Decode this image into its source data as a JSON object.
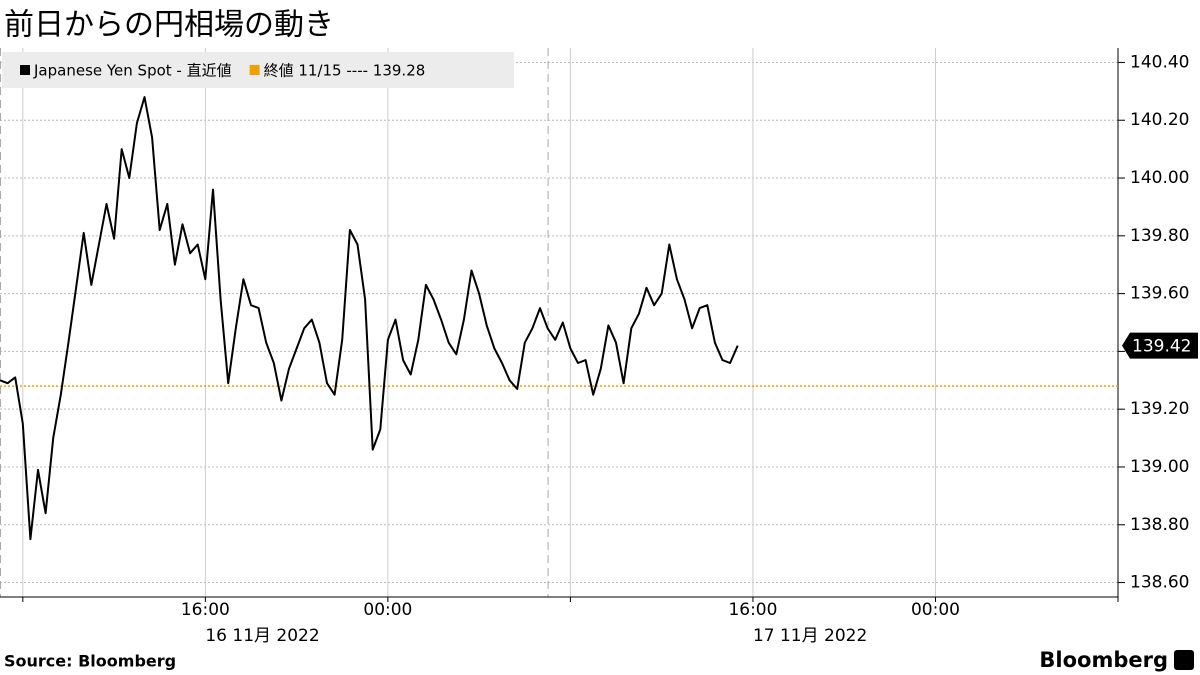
{
  "chart_data": {
    "type": "line",
    "title": "前日からの円相場の動き",
    "source": "Source:  Bloomberg",
    "brand": "Bloomberg",
    "x": [
      "2022-11-16T07:00",
      "2022-11-16T07:20",
      "2022-11-16T07:40",
      "2022-11-16T08:00",
      "2022-11-16T08:20",
      "2022-11-16T08:40",
      "2022-11-16T09:00",
      "2022-11-16T09:20",
      "2022-11-16T09:40",
      "2022-11-16T10:00",
      "2022-11-16T10:20",
      "2022-11-16T10:40",
      "2022-11-16T11:00",
      "2022-11-16T11:20",
      "2022-11-16T11:40",
      "2022-11-16T12:00",
      "2022-11-16T12:20",
      "2022-11-16T12:40",
      "2022-11-16T13:00",
      "2022-11-16T13:20",
      "2022-11-16T13:40",
      "2022-11-16T14:00",
      "2022-11-16T14:20",
      "2022-11-16T14:40",
      "2022-11-16T15:00",
      "2022-11-16T15:20",
      "2022-11-16T15:40",
      "2022-11-16T16:00",
      "2022-11-16T16:20",
      "2022-11-16T16:40",
      "2022-11-16T17:00",
      "2022-11-16T17:20",
      "2022-11-16T17:40",
      "2022-11-16T18:00",
      "2022-11-16T18:20",
      "2022-11-16T18:40",
      "2022-11-16T19:00",
      "2022-11-16T19:20",
      "2022-11-16T19:40",
      "2022-11-16T20:00",
      "2022-11-16T20:20",
      "2022-11-16T20:40",
      "2022-11-16T21:00",
      "2022-11-16T21:20",
      "2022-11-16T21:40",
      "2022-11-16T22:00",
      "2022-11-16T22:20",
      "2022-11-16T22:40",
      "2022-11-16T23:00",
      "2022-11-16T23:20",
      "2022-11-16T23:40",
      "2022-11-17T00:00",
      "2022-11-17T00:20",
      "2022-11-17T00:40",
      "2022-11-17T01:00",
      "2022-11-17T01:20",
      "2022-11-17T01:40",
      "2022-11-17T02:00",
      "2022-11-17T02:20",
      "2022-11-17T02:40",
      "2022-11-17T03:00",
      "2022-11-17T03:20",
      "2022-11-17T03:40",
      "2022-11-17T04:00",
      "2022-11-17T04:20",
      "2022-11-17T04:40",
      "2022-11-17T05:00",
      "2022-11-17T05:20",
      "2022-11-17T05:40",
      "2022-11-17T06:00",
      "2022-11-17T06:20",
      "2022-11-17T06:40",
      "2022-11-17T07:00",
      "2022-11-17T07:20",
      "2022-11-17T07:40",
      "2022-11-17T08:00",
      "2022-11-17T08:20",
      "2022-11-17T08:40",
      "2022-11-17T09:00",
      "2022-11-17T09:20",
      "2022-11-17T09:40",
      "2022-11-17T10:00",
      "2022-11-17T10:20",
      "2022-11-17T10:40",
      "2022-11-17T11:00",
      "2022-11-17T11:20",
      "2022-11-17T11:40",
      "2022-11-17T12:00",
      "2022-11-17T12:20",
      "2022-11-17T12:40",
      "2022-11-17T13:00",
      "2022-11-17T13:20",
      "2022-11-17T13:40",
      "2022-11-17T14:00",
      "2022-11-17T14:20",
      "2022-11-17T14:40",
      "2022-11-17T15:00",
      "2022-11-17T15:20"
    ],
    "series": [
      {
        "name": "Japanese Yen Spot - 直近値",
        "color": "#000000",
        "values": [
          139.3,
          139.29,
          139.31,
          139.15,
          138.75,
          138.99,
          138.84,
          139.1,
          139.25,
          139.43,
          139.62,
          139.81,
          139.63,
          139.77,
          139.91,
          139.79,
          140.1,
          140.0,
          140.19,
          140.28,
          140.14,
          139.82,
          139.91,
          139.7,
          139.84,
          139.74,
          139.77,
          139.65,
          139.96,
          139.58,
          139.29,
          139.48,
          139.65,
          139.56,
          139.55,
          139.43,
          139.36,
          139.23,
          139.34,
          139.41,
          139.48,
          139.51,
          139.43,
          139.29,
          139.25,
          139.44,
          139.82,
          139.77,
          139.58,
          139.06,
          139.13,
          139.44,
          139.51,
          139.37,
          139.32,
          139.44,
          139.63,
          139.58,
          139.51,
          139.43,
          139.39,
          139.51,
          139.68,
          139.6,
          139.49,
          139.41,
          139.36,
          139.3,
          139.27,
          139.43,
          139.48,
          139.55,
          139.48,
          139.44,
          139.5,
          139.41,
          139.36,
          139.37,
          139.25,
          139.34,
          139.49,
          139.43,
          139.29,
          139.48,
          139.53,
          139.62,
          139.56,
          139.6,
          139.77,
          139.65,
          139.58,
          139.48,
          139.55,
          139.56,
          139.43,
          139.37,
          139.36,
          139.42
        ]
      }
    ],
    "reference_line": {
      "name": "終値 11/15 ---- 139.28",
      "value": 139.28,
      "color": "#f0a000"
    },
    "xlim": [
      "2022-11-16T07:00",
      "2022-11-18T08:00"
    ],
    "xticks": [
      {
        "value": "2022-11-16T16:00",
        "label": "16:00"
      },
      {
        "value": "2022-11-17T00:00",
        "label": "00:00"
      },
      {
        "value": "2022-11-17T16:00",
        "label": "16:00"
      },
      {
        "value": "2022-11-18T00:00",
        "label": "00:00"
      }
    ],
    "minor_xticks": [
      "2022-11-16T08:00",
      "2022-11-17T08:00",
      "2022-11-18T08:00"
    ],
    "date_labels": [
      {
        "value": "2022-11-16T16:00",
        "label": "16 11月 2022"
      },
      {
        "value": "2022-11-17T16:00",
        "label": "17 11月 2022"
      }
    ],
    "session_breaks": [
      "2022-11-16T07:00",
      "2022-11-17T07:00"
    ],
    "ylim": [
      138.55,
      140.45
    ],
    "yticks": [
      {
        "value": 138.6,
        "label": "138.60"
      },
      {
        "value": 138.8,
        "label": "138.80"
      },
      {
        "value": 139,
        "label": "139.00"
      },
      {
        "value": 139.2,
        "label": "139.20"
      },
      {
        "value": 139.4,
        "label": "139.40"
      },
      {
        "value": 139.6,
        "label": "139.60"
      },
      {
        "value": 139.8,
        "label": "139.80"
      },
      {
        "value": 140,
        "label": "140.00"
      },
      {
        "value": 140.2,
        "label": "140.20"
      },
      {
        "value": 140.4,
        "label": "140.40"
      }
    ],
    "grid": true,
    "legend": "top-left"
  }
}
